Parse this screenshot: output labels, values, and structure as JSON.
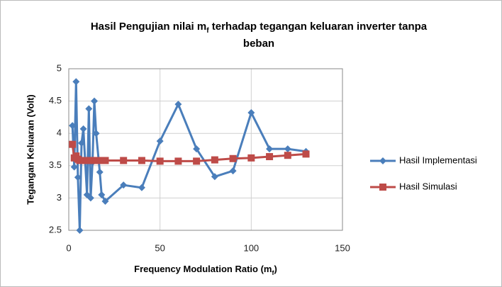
{
  "chart_data": {
    "type": "line",
    "title": [
      "Hasil Pengujian nilai m",
      "f",
      " terhadap tegangan keluaran inverter tanpa",
      "beban"
    ],
    "x_label": [
      "Frequency Modulation Ratio (m",
      "f",
      ")"
    ],
    "y_label": "Tegangan Keluaran (Volt)",
    "xlim": [
      0,
      150
    ],
    "xticks": [
      0,
      50,
      100,
      150
    ],
    "ylim": [
      2.5,
      5
    ],
    "yticks": [
      2.5,
      3,
      3.5,
      4,
      4.5,
      5
    ],
    "grid": true,
    "legend": "right",
    "series": [
      {
        "name": "Hasil Implementasi",
        "color": "#4a7ebb",
        "marker": "diamond",
        "x": [
          2,
          3,
          4,
          5,
          6,
          7,
          8,
          10,
          11,
          12,
          13,
          14,
          15,
          17,
          18,
          20,
          30,
          40,
          50,
          60,
          70,
          80,
          90,
          100,
          110,
          120,
          130
        ],
        "values": [
          4.12,
          3.48,
          4.8,
          3.32,
          2.5,
          3.85,
          4.07,
          3.05,
          4.38,
          3.0,
          3.55,
          4.5,
          4.0,
          3.4,
          3.05,
          2.95,
          3.2,
          3.16,
          3.88,
          4.45,
          3.76,
          3.33,
          3.42,
          4.32,
          3.76,
          3.76,
          3.72
        ]
      },
      {
        "name": "Hasil Simulasi",
        "color": "#be4b48",
        "marker": "square",
        "x": [
          2,
          3,
          4,
          5,
          6,
          7,
          8,
          10,
          11,
          12,
          13,
          14,
          15,
          17,
          18,
          20,
          30,
          40,
          50,
          60,
          70,
          80,
          90,
          100,
          110,
          120,
          130
        ],
        "values": [
          3.83,
          3.62,
          3.65,
          3.6,
          3.58,
          3.58,
          3.58,
          3.58,
          3.58,
          3.58,
          3.58,
          3.58,
          3.58,
          3.58,
          3.58,
          3.58,
          3.58,
          3.58,
          3.57,
          3.57,
          3.57,
          3.59,
          3.61,
          3.62,
          3.64,
          3.66,
          3.68
        ]
      }
    ]
  }
}
